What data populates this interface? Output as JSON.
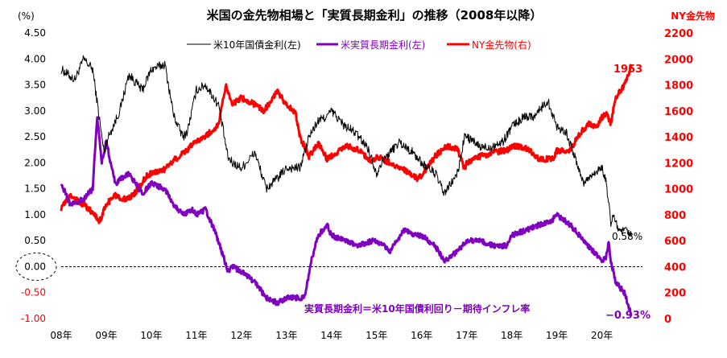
{
  "chart_data": {
    "type": "line",
    "title": "米国の金先物相場と「実質長期金利」の推移（2008年以降）",
    "left_axis_unit": "(%)",
    "right_axis_title": "NY金先物",
    "ylim_left": [
      -1.0,
      4.5
    ],
    "ylim_right": [
      0,
      2200
    ],
    "left_ticks": [
      "4.50",
      "4.00",
      "3.50",
      "3.00",
      "2.50",
      "2.00",
      "1.50",
      "1.00",
      "0.50",
      "0.00",
      "-0.50",
      "-1.00"
    ],
    "right_ticks": [
      "2200",
      "2000",
      "1800",
      "1600",
      "1400",
      "1200",
      "1000",
      "800",
      "600",
      "400",
      "200",
      "0"
    ],
    "x_labels": [
      "08年",
      "09年",
      "10年",
      "11年",
      "12年",
      "13年",
      "14年",
      "15年",
      "16年",
      "17年",
      "18年",
      "19年",
      "20年"
    ],
    "xlim": [
      2008.0,
      2020.9
    ],
    "legend": [
      {
        "label": "米10年国債金利(左)",
        "color": "#000000"
      },
      {
        "label": "米実質長期金利(左)",
        "color": "#8000c0"
      },
      {
        "label": "NY金先物(右)",
        "color": "#ff0000"
      }
    ],
    "annotations": {
      "gold_last": "1953",
      "nominal_last": "0.58%",
      "real_last": "−0.93%",
      "formula": "実質長期金利＝米10年国債利回り－期待インフレ率"
    },
    "series": [
      {
        "name": "米10年国債金利",
        "axis": "left",
        "color": "#000000",
        "width": 1,
        "x": [
          2008.0,
          2008.3,
          2008.5,
          2008.7,
          2008.95,
          2009.0,
          2009.3,
          2009.5,
          2009.8,
          2010.0,
          2010.3,
          2010.5,
          2010.7,
          2010.8,
          2011.0,
          2011.2,
          2011.5,
          2011.7,
          2011.8,
          2012.0,
          2012.3,
          2012.55,
          2012.8,
          2013.0,
          2013.3,
          2013.5,
          2013.7,
          2013.9,
          2014.0,
          2014.3,
          2014.5,
          2014.8,
          2015.0,
          2015.1,
          2015.3,
          2015.5,
          2015.8,
          2016.0,
          2016.3,
          2016.5,
          2016.8,
          2016.95,
          2017.0,
          2017.3,
          2017.5,
          2017.8,
          2018.0,
          2018.3,
          2018.5,
          2018.8,
          2019.0,
          2019.2,
          2019.4,
          2019.6,
          2019.8,
          2020.0,
          2020.1,
          2020.2,
          2020.25,
          2020.4,
          2020.55,
          2020.65
        ],
        "y": [
          3.8,
          3.6,
          4.0,
          3.8,
          2.2,
          2.4,
          3.0,
          3.7,
          3.4,
          3.8,
          3.9,
          2.9,
          2.5,
          2.6,
          3.4,
          3.5,
          3.1,
          2.1,
          2.0,
          1.9,
          2.2,
          1.5,
          1.7,
          1.9,
          1.9,
          2.5,
          2.8,
          2.9,
          3.0,
          2.7,
          2.6,
          2.3,
          1.8,
          2.0,
          2.2,
          2.4,
          2.2,
          2.0,
          1.8,
          1.4,
          1.8,
          2.5,
          2.5,
          2.3,
          2.3,
          2.4,
          2.7,
          2.9,
          2.9,
          3.2,
          2.7,
          2.6,
          2.1,
          1.6,
          1.8,
          1.9,
          1.6,
          0.8,
          1.0,
          0.65,
          0.7,
          0.58
        ]
      },
      {
        "name": "米実質長期金利",
        "axis": "left",
        "color": "#8000c0",
        "width": 3,
        "x": [
          2008.0,
          2008.2,
          2008.5,
          2008.7,
          2008.8,
          2008.9,
          2009.0,
          2009.2,
          2009.5,
          2009.8,
          2010.0,
          2010.3,
          2010.5,
          2010.7,
          2010.9,
          2011.0,
          2011.2,
          2011.4,
          2011.6,
          2011.7,
          2011.8,
          2012.0,
          2012.3,
          2012.55,
          2012.8,
          2013.0,
          2013.2,
          2013.4,
          2013.55,
          2013.7,
          2013.9,
          2014.0,
          2014.3,
          2014.6,
          2014.9,
          2015.0,
          2015.3,
          2015.6,
          2015.9,
          2016.0,
          2016.3,
          2016.5,
          2016.8,
          2017.0,
          2017.3,
          2017.6,
          2017.9,
          2018.0,
          2018.3,
          2018.6,
          2018.9,
          2019.0,
          2019.3,
          2019.5,
          2019.7,
          2019.9,
          2020.0,
          2020.1,
          2020.15,
          2020.2,
          2020.3,
          2020.5,
          2020.65
        ],
        "y": [
          1.6,
          1.2,
          1.3,
          1.5,
          2.9,
          2.0,
          2.4,
          1.6,
          1.8,
          1.4,
          1.6,
          1.5,
          1.2,
          1.0,
          1.1,
          1.0,
          1.1,
          0.7,
          0.2,
          -0.1,
          0.0,
          -0.1,
          -0.3,
          -0.6,
          -0.7,
          -0.6,
          -0.6,
          -0.6,
          0.1,
          0.6,
          0.8,
          0.6,
          0.5,
          0.4,
          0.5,
          0.5,
          0.3,
          0.7,
          0.6,
          0.6,
          0.4,
          0.1,
          0.3,
          0.5,
          0.5,
          0.4,
          0.4,
          0.6,
          0.7,
          0.8,
          0.9,
          1.0,
          0.8,
          0.6,
          0.4,
          0.2,
          0.1,
          0.2,
          0.5,
          0.1,
          -0.3,
          -0.5,
          -0.93
        ]
      },
      {
        "name": "NY金先物",
        "axis": "right",
        "color": "#ff0000",
        "width": 3,
        "x": [
          2008.0,
          2008.2,
          2008.4,
          2008.6,
          2008.85,
          2009.0,
          2009.2,
          2009.4,
          2009.6,
          2009.9,
          2010.0,
          2010.3,
          2010.5,
          2010.8,
          2011.0,
          2011.2,
          2011.5,
          2011.65,
          2011.8,
          2012.0,
          2012.3,
          2012.5,
          2012.8,
          2013.0,
          2013.2,
          2013.3,
          2013.5,
          2013.7,
          2013.9,
          2014.0,
          2014.3,
          2014.6,
          2014.9,
          2015.0,
          2015.3,
          2015.6,
          2015.9,
          2016.0,
          2016.3,
          2016.55,
          2016.8,
          2016.95,
          2017.0,
          2017.3,
          2017.6,
          2017.9,
          2018.0,
          2018.3,
          2018.6,
          2018.9,
          2019.0,
          2019.3,
          2019.5,
          2019.7,
          2019.9,
          2020.0,
          2020.1,
          2020.2,
          2020.3,
          2020.4,
          2020.5,
          2020.6,
          2020.65
        ],
        "y": [
          850,
          950,
          900,
          850,
          750,
          880,
          950,
          920,
          950,
          1100,
          1120,
          1150,
          1220,
          1300,
          1370,
          1400,
          1500,
          1800,
          1650,
          1700,
          1650,
          1600,
          1750,
          1650,
          1580,
          1400,
          1250,
          1350,
          1230,
          1250,
          1330,
          1300,
          1200,
          1250,
          1200,
          1150,
          1080,
          1100,
          1250,
          1330,
          1300,
          1150,
          1200,
          1250,
          1280,
          1300,
          1330,
          1320,
          1230,
          1230,
          1290,
          1300,
          1420,
          1500,
          1480,
          1550,
          1580,
          1500,
          1700,
          1750,
          1800,
          1900,
          1953
        ]
      }
    ]
  }
}
